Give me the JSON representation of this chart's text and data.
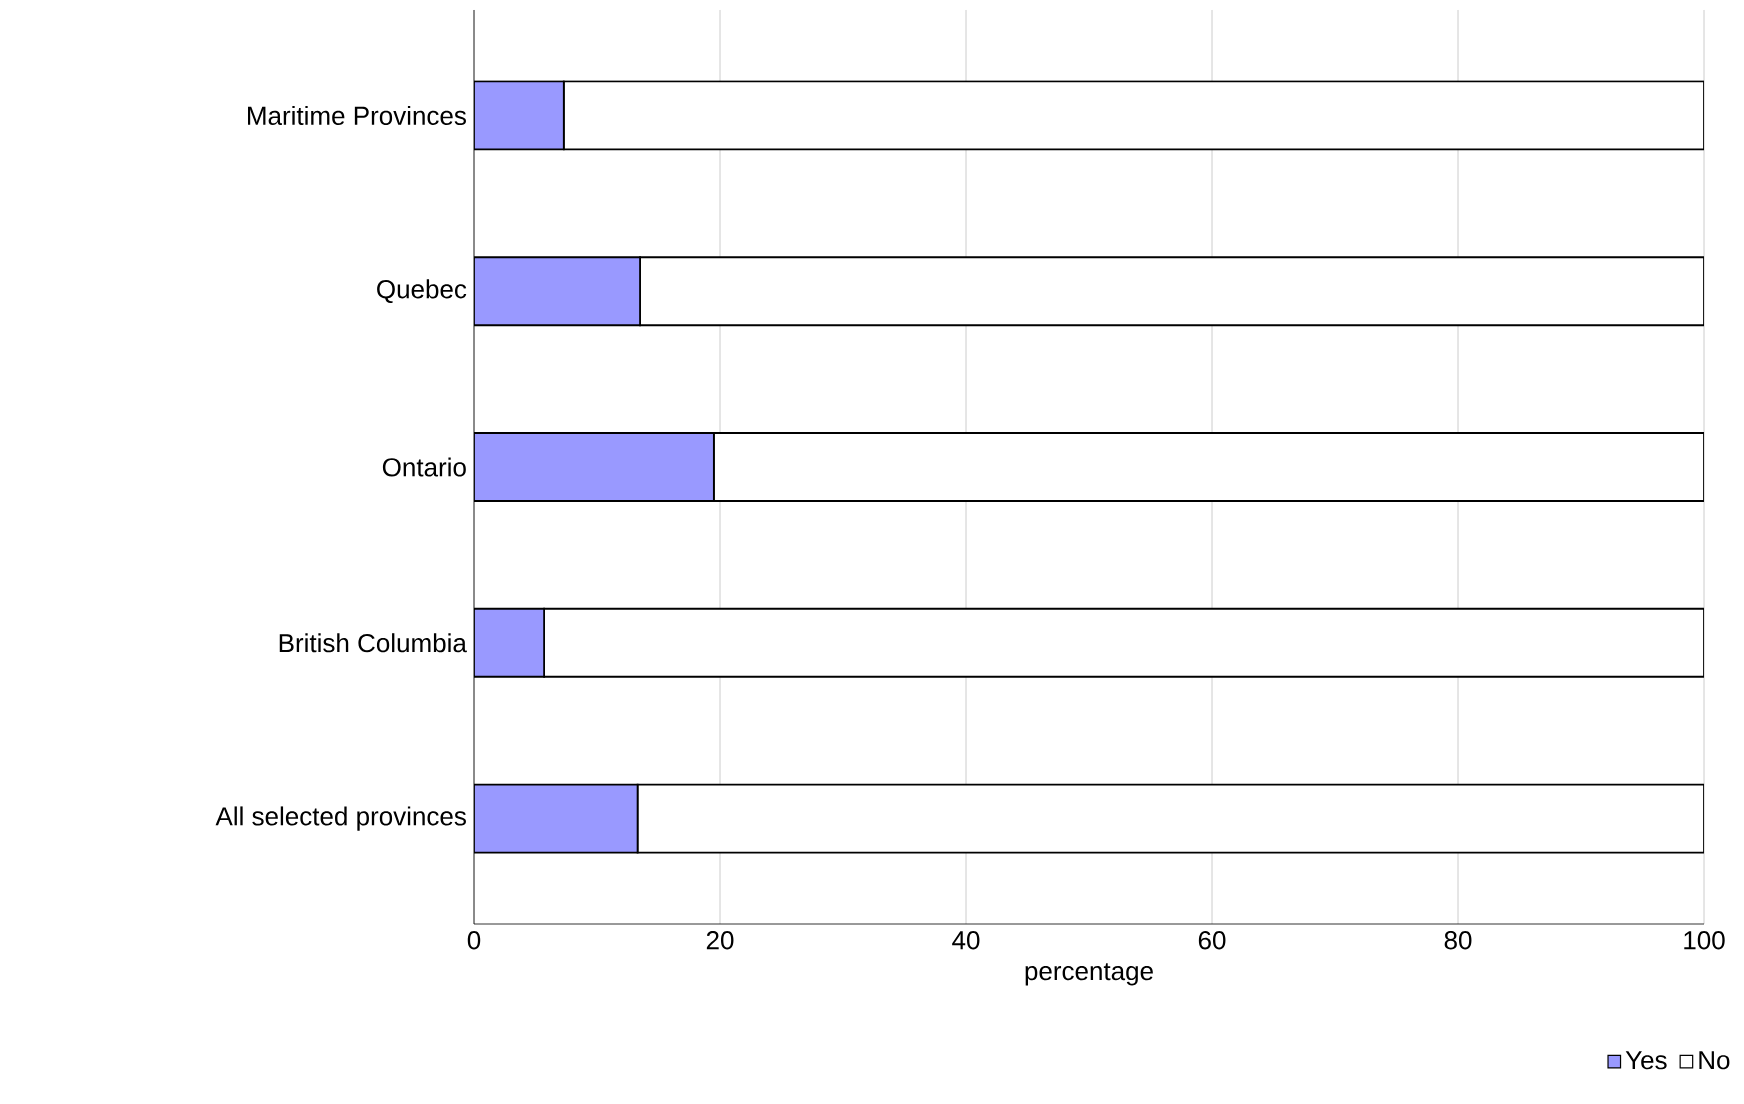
{
  "chart_data": {
    "type": "bar",
    "orientation": "horizontal",
    "stacked": true,
    "categories": [
      "Maritime Provinces",
      "Quebec",
      "Ontario",
      "British Columbia",
      "All selected provinces"
    ],
    "series": [
      {
        "name": "Yes",
        "color": "#9999ff",
        "values": [
          7.3,
          13.5,
          19.5,
          5.7,
          13.3
        ]
      },
      {
        "name": "No",
        "color": "#ffffff",
        "values": [
          92.7,
          86.5,
          80.5,
          94.3,
          86.7
        ]
      }
    ],
    "xlabel": "percentage",
    "xlim": [
      0,
      100
    ],
    "xticks": [
      0,
      20,
      40,
      60,
      80,
      100
    ],
    "grid": "x",
    "legend": "bottom right"
  }
}
